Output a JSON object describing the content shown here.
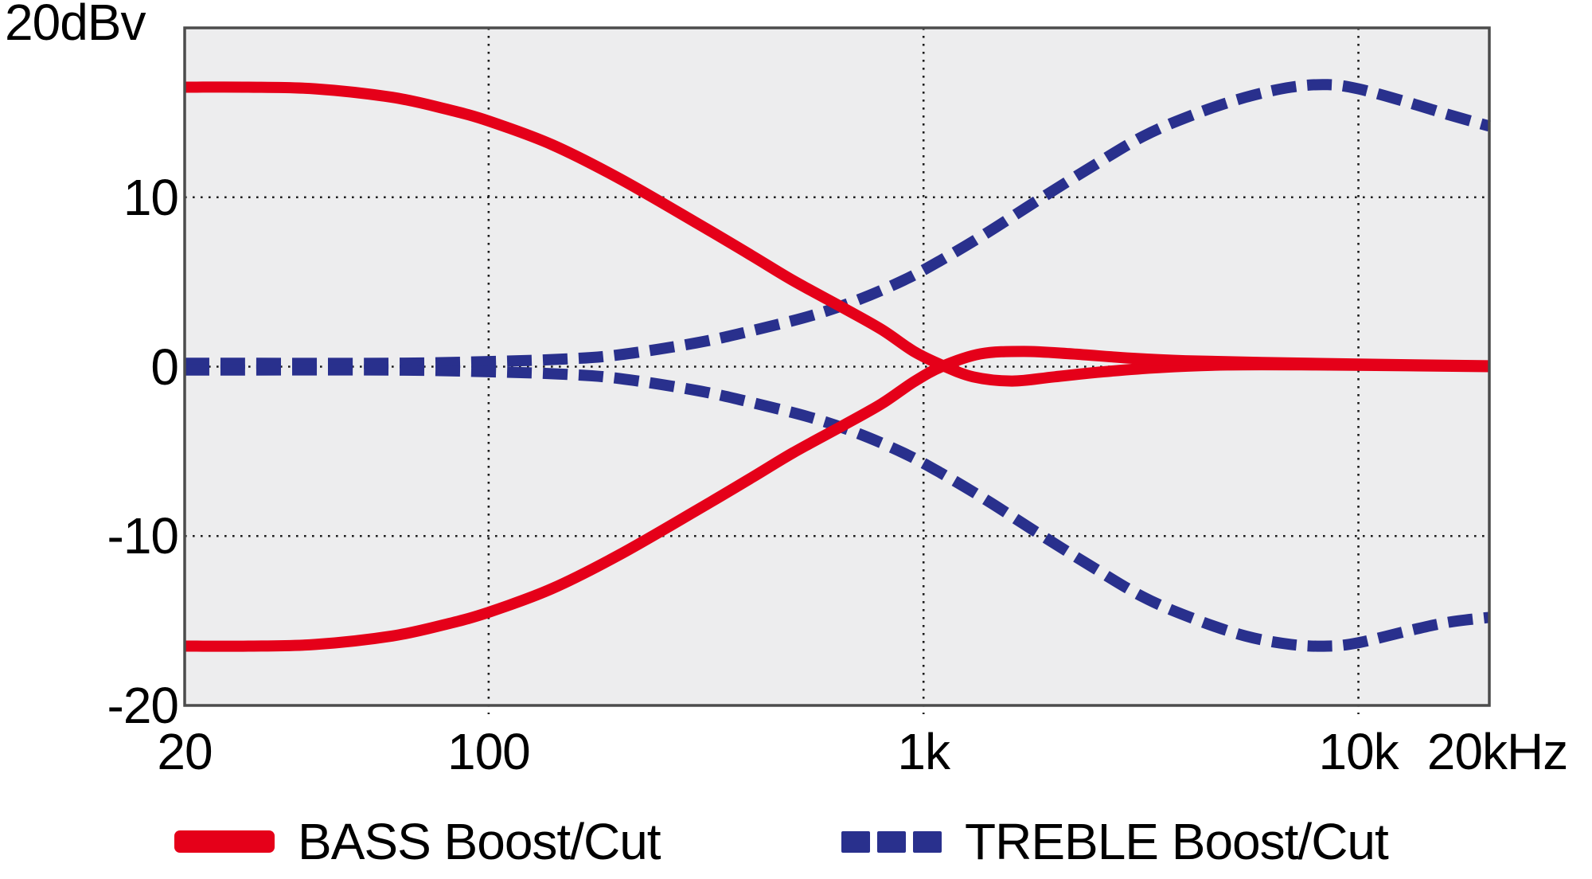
{
  "chart_data": {
    "type": "line",
    "x_scale": "log",
    "xlim": [
      20,
      20000
    ],
    "ylim": [
      -20,
      20
    ],
    "y_axis_top_label": "20dBv",
    "x_ticks": [
      {
        "label": "20",
        "f": 20
      },
      {
        "label": "100",
        "f": 100
      },
      {
        "label": "1k",
        "f": 1000
      },
      {
        "label": "10k",
        "f": 10000
      },
      {
        "label": "20kHz",
        "f": 20000
      }
    ],
    "y_ticks": [
      {
        "label": "10",
        "db": 10
      },
      {
        "label": "0",
        "db": 0
      },
      {
        "label": "-10",
        "db": -10
      },
      {
        "label": "-20",
        "db": -20
      }
    ],
    "x_gridlines": [
      100,
      1000,
      10000
    ],
    "y_gridlines": [
      10,
      0,
      -10
    ],
    "grid": true,
    "legend_position": "bottom",
    "series": [
      {
        "name": "TREBLE Boost",
        "color": "blue",
        "style": "dashed",
        "points": [
          [
            20,
            0.2
          ],
          [
            60,
            0.2
          ],
          [
            100,
            0.3
          ],
          [
            150,
            0.45
          ],
          [
            200,
            0.7
          ],
          [
            300,
            1.4
          ],
          [
            400,
            2.1
          ],
          [
            550,
            3.0
          ],
          [
            700,
            3.9
          ],
          [
            900,
            5.1
          ],
          [
            1100,
            6.3
          ],
          [
            1400,
            7.9
          ],
          [
            1800,
            9.7
          ],
          [
            2400,
            11.7
          ],
          [
            3200,
            13.6
          ],
          [
            4200,
            14.9
          ],
          [
            5500,
            15.9
          ],
          [
            7000,
            16.5
          ],
          [
            8500,
            16.65
          ],
          [
            10000,
            16.4
          ],
          [
            13000,
            15.6
          ],
          [
            16000,
            14.9
          ],
          [
            20000,
            14.2
          ]
        ]
      },
      {
        "name": "TREBLE Cut",
        "color": "blue",
        "style": "dashed",
        "points": [
          [
            20,
            -0.2
          ],
          [
            60,
            -0.2
          ],
          [
            100,
            -0.3
          ],
          [
            150,
            -0.45
          ],
          [
            200,
            -0.7
          ],
          [
            300,
            -1.4
          ],
          [
            400,
            -2.1
          ],
          [
            550,
            -3.0
          ],
          [
            700,
            -3.9
          ],
          [
            900,
            -5.1
          ],
          [
            1100,
            -6.3
          ],
          [
            1400,
            -7.9
          ],
          [
            1800,
            -9.7
          ],
          [
            2400,
            -11.7
          ],
          [
            3200,
            -13.6
          ],
          [
            4200,
            -14.9
          ],
          [
            5500,
            -15.9
          ],
          [
            7000,
            -16.4
          ],
          [
            8500,
            -16.5
          ],
          [
            10000,
            -16.3
          ],
          [
            13000,
            -15.6
          ],
          [
            16000,
            -15.1
          ],
          [
            20000,
            -14.8
          ]
        ]
      },
      {
        "name": "BASS Boost",
        "color": "red",
        "style": "solid",
        "points": [
          [
            20,
            16.5
          ],
          [
            28,
            16.5
          ],
          [
            40,
            16.4
          ],
          [
            60,
            15.9
          ],
          [
            80,
            15.2
          ],
          [
            100,
            14.5
          ],
          [
            140,
            13.1
          ],
          [
            200,
            11.1
          ],
          [
            300,
            8.5
          ],
          [
            400,
            6.6
          ],
          [
            500,
            5.1
          ],
          [
            650,
            3.5
          ],
          [
            800,
            2.2
          ],
          [
            950,
            0.9
          ],
          [
            1100,
            0.1
          ],
          [
            1300,
            -0.6
          ],
          [
            1600,
            -0.85
          ],
          [
            2000,
            -0.6
          ],
          [
            2600,
            -0.3
          ],
          [
            3500,
            -0.05
          ],
          [
            5000,
            0.1
          ],
          [
            8000,
            0.1
          ],
          [
            13000,
            0.05
          ],
          [
            20000,
            0
          ]
        ]
      },
      {
        "name": "BASS Cut",
        "color": "red",
        "style": "solid",
        "points": [
          [
            20,
            -16.5
          ],
          [
            28,
            -16.5
          ],
          [
            40,
            -16.4
          ],
          [
            60,
            -15.9
          ],
          [
            80,
            -15.2
          ],
          [
            100,
            -14.5
          ],
          [
            140,
            -13.1
          ],
          [
            200,
            -11.1
          ],
          [
            300,
            -8.5
          ],
          [
            400,
            -6.6
          ],
          [
            500,
            -5.1
          ],
          [
            650,
            -3.5
          ],
          [
            800,
            -2.2
          ],
          [
            950,
            -0.9
          ],
          [
            1100,
            0.0
          ],
          [
            1350,
            0.75
          ],
          [
            1700,
            0.9
          ],
          [
            2200,
            0.75
          ],
          [
            3000,
            0.5
          ],
          [
            4000,
            0.35
          ],
          [
            6000,
            0.25
          ],
          [
            10000,
            0.15
          ],
          [
            20000,
            0.05
          ]
        ]
      }
    ]
  },
  "legend": {
    "items": [
      {
        "label": "BASS Boost/Cut",
        "color_key": "red",
        "swatch": "solid"
      },
      {
        "label": "TREBLE Boost/Cut",
        "color_key": "blue",
        "swatch": "dashed"
      }
    ]
  },
  "colors": {
    "red": "#e50019",
    "blue": "#29308d",
    "plot_bg": "#ededee",
    "grid": "#1c1c1c",
    "border": "#4c4c4c",
    "text": "#000000"
  }
}
